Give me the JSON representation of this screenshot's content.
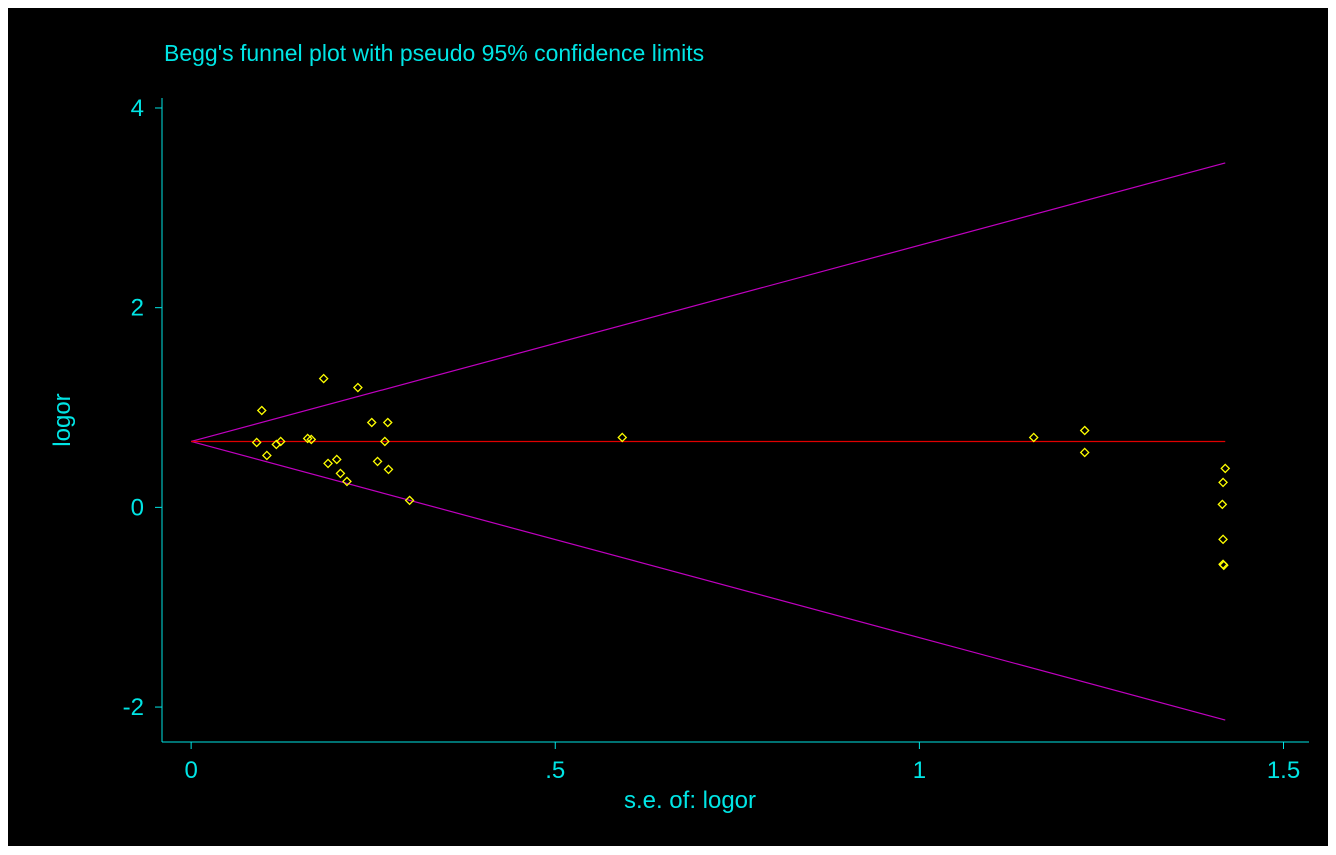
{
  "chart_data": {
    "type": "scatter",
    "title": "Begg's funnel plot with pseudo 95% confidence limits",
    "xlabel": "s.e. of: logor",
    "ylabel": "logor",
    "xlim": [
      -0.04,
      1.535
    ],
    "ylim": [
      -2.35,
      4.1
    ],
    "x_ticks": [
      {
        "value": 0,
        "label": "0"
      },
      {
        "value": 0.5,
        "label": ".5"
      },
      {
        "value": 1,
        "label": "1"
      },
      {
        "value": 1.5,
        "label": "1.5"
      }
    ],
    "y_ticks": [
      {
        "value": -2,
        "label": "-2"
      },
      {
        "value": 0,
        "label": "0"
      },
      {
        "value": 2,
        "label": "2"
      },
      {
        "value": 4,
        "label": "4"
      }
    ],
    "grid": false,
    "pooled_estimate": 0.66,
    "pseudo_ci_lines": {
      "upper": [
        [
          0,
          0.66
        ],
        [
          1.42,
          3.45
        ]
      ],
      "lower": [
        [
          0,
          0.66
        ],
        [
          1.42,
          -2.13
        ]
      ]
    },
    "points": [
      {
        "x": 0.09,
        "y": 0.65
      },
      {
        "x": 0.097,
        "y": 0.97
      },
      {
        "x": 0.104,
        "y": 0.52
      },
      {
        "x": 0.117,
        "y": 0.63
      },
      {
        "x": 0.123,
        "y": 0.66
      },
      {
        "x": 0.16,
        "y": 0.69
      },
      {
        "x": 0.165,
        "y": 0.68
      },
      {
        "x": 0.182,
        "y": 1.29
      },
      {
        "x": 0.188,
        "y": 0.44
      },
      {
        "x": 0.2,
        "y": 0.48
      },
      {
        "x": 0.205,
        "y": 0.34
      },
      {
        "x": 0.214,
        "y": 0.26
      },
      {
        "x": 0.229,
        "y": 1.2
      },
      {
        "x": 0.248,
        "y": 0.85
      },
      {
        "x": 0.256,
        "y": 0.46
      },
      {
        "x": 0.266,
        "y": 0.66
      },
      {
        "x": 0.27,
        "y": 0.85
      },
      {
        "x": 0.271,
        "y": 0.38
      },
      {
        "x": 0.3,
        "y": 0.07
      },
      {
        "x": 0.592,
        "y": 0.7
      },
      {
        "x": 1.157,
        "y": 0.7
      },
      {
        "x": 1.227,
        "y": 0.77
      },
      {
        "x": 1.227,
        "y": 0.55
      },
      {
        "x": 1.42,
        "y": 0.39
      },
      {
        "x": 1.417,
        "y": 0.25
      },
      {
        "x": 1.416,
        "y": 0.03
      },
      {
        "x": 1.417,
        "y": -0.32
      },
      {
        "x": 1.417,
        "y": -0.57
      },
      {
        "x": 1.418,
        "y": -0.58
      }
    ],
    "colors": {
      "background": "#000000",
      "text_axes": "#00e5e5",
      "points": "#ffff00",
      "pooled_line": "#e00000",
      "ci_lines": "#c000c0"
    }
  }
}
